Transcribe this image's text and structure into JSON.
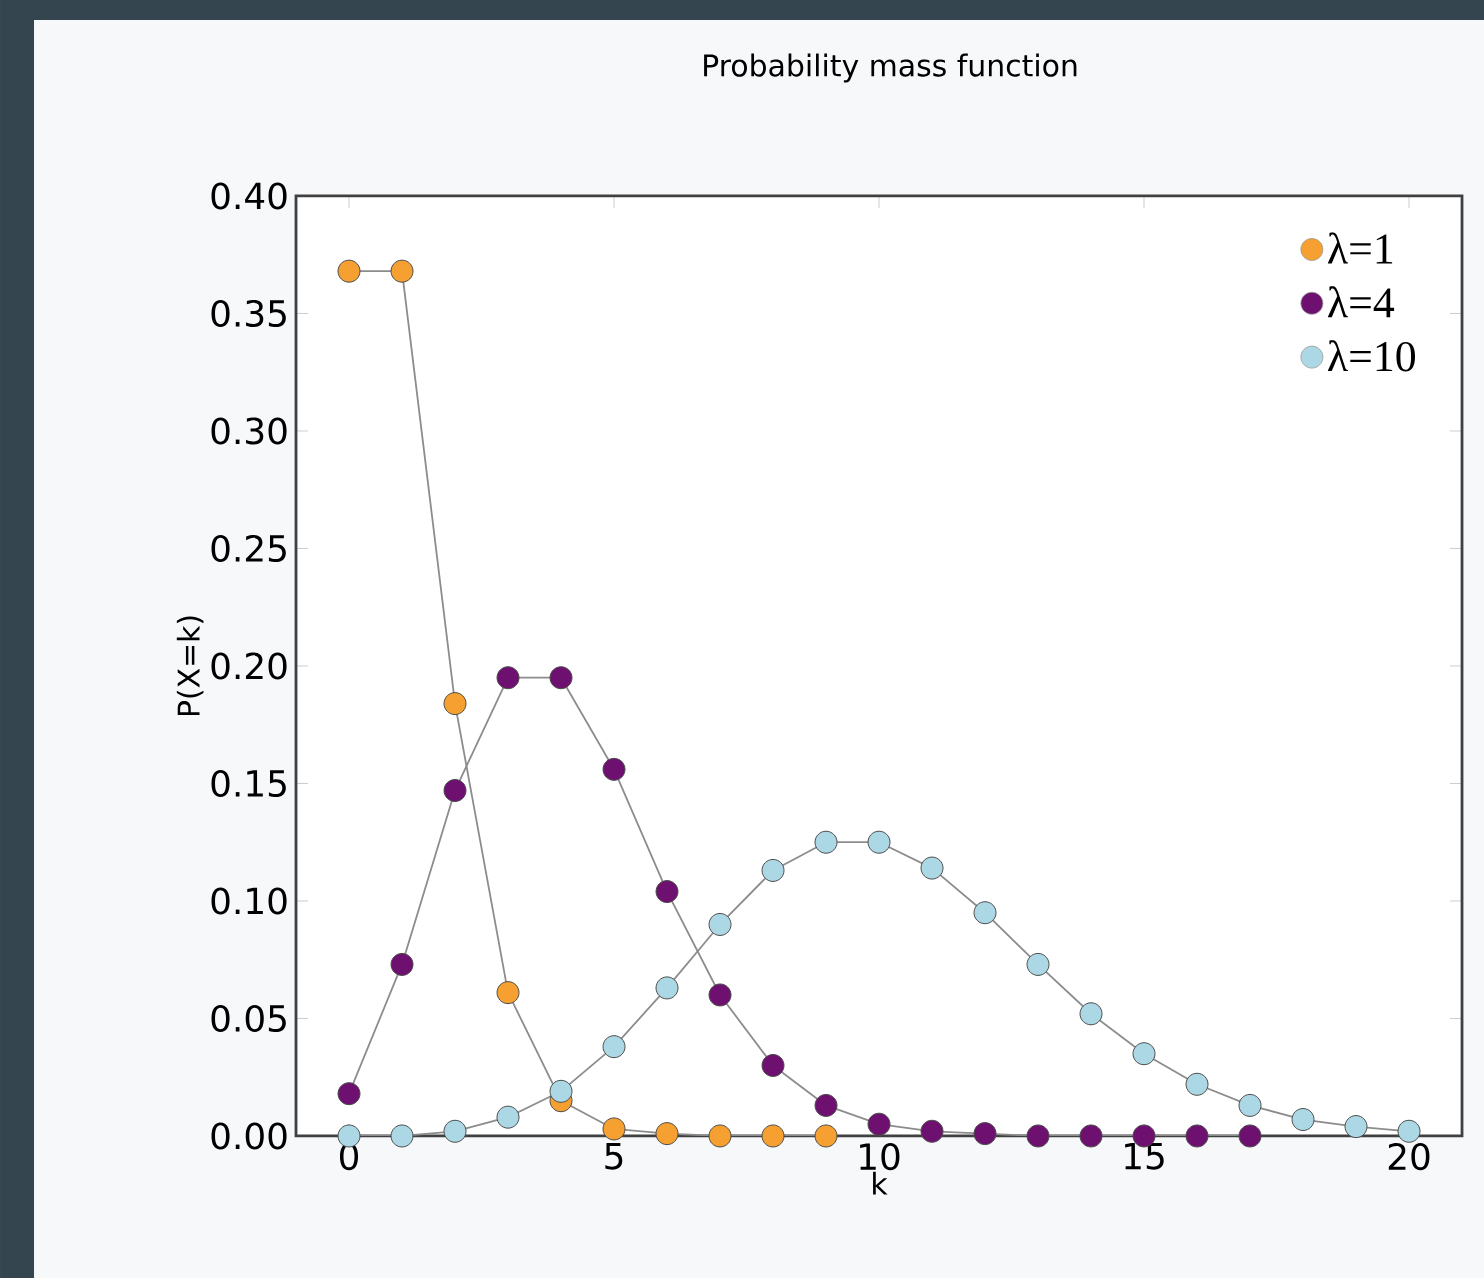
{
  "chart_data": {
    "type": "line",
    "title": "Probability mass function",
    "xlabel": "k",
    "ylabel": "P(X=k)",
    "x": [
      0,
      1,
      2,
      3,
      4,
      5,
      6,
      7,
      8,
      9,
      10,
      11,
      12,
      13,
      14,
      15,
      16,
      17,
      18,
      19,
      20
    ],
    "series": [
      {
        "name": "λ=1",
        "color": "#f5a030",
        "values": [
          0.368,
          0.368,
          0.184,
          0.061,
          0.015,
          0.003,
          0.001,
          0.0,
          0.0,
          0.0,
          null,
          null,
          null,
          null,
          null,
          null,
          null,
          null,
          null,
          null,
          null
        ]
      },
      {
        "name": "λ=4",
        "color": "#6e1070",
        "values": [
          0.018,
          0.073,
          0.147,
          0.195,
          0.195,
          0.156,
          0.104,
          0.06,
          0.03,
          0.013,
          0.005,
          0.002,
          0.001,
          0.0,
          0.0,
          0.0,
          0.0,
          0.0,
          null,
          null,
          null
        ]
      },
      {
        "name": "λ=10",
        "color": "#acd8e6",
        "values": [
          0.0,
          0.0,
          0.002,
          0.008,
          0.019,
          0.038,
          0.063,
          0.09,
          0.113,
          0.125,
          0.125,
          0.114,
          0.095,
          0.073,
          0.052,
          0.035,
          0.022,
          0.013,
          0.007,
          0.004,
          0.002
        ]
      }
    ],
    "xlim": [
      -1,
      21
    ],
    "xticks": [
      0,
      5,
      10,
      15,
      20
    ],
    "ylim": [
      0,
      0.4
    ],
    "yticks": [
      {
        "value": 0,
        "label": "0.00"
      },
      {
        "value": 0.05,
        "label": "0.05"
      },
      {
        "value": 0.1,
        "label": "0.10"
      },
      {
        "value": 0.15,
        "label": "0.15"
      },
      {
        "value": 0.2,
        "label": "0.20"
      },
      {
        "value": 0.25,
        "label": "0.25"
      },
      {
        "value": 0.3,
        "label": "0.30"
      },
      {
        "value": 0.35,
        "label": "0.35"
      },
      {
        "value": 0.4,
        "label": "0.40"
      }
    ],
    "marker": "circle",
    "grid": false,
    "legend": "top right"
  }
}
